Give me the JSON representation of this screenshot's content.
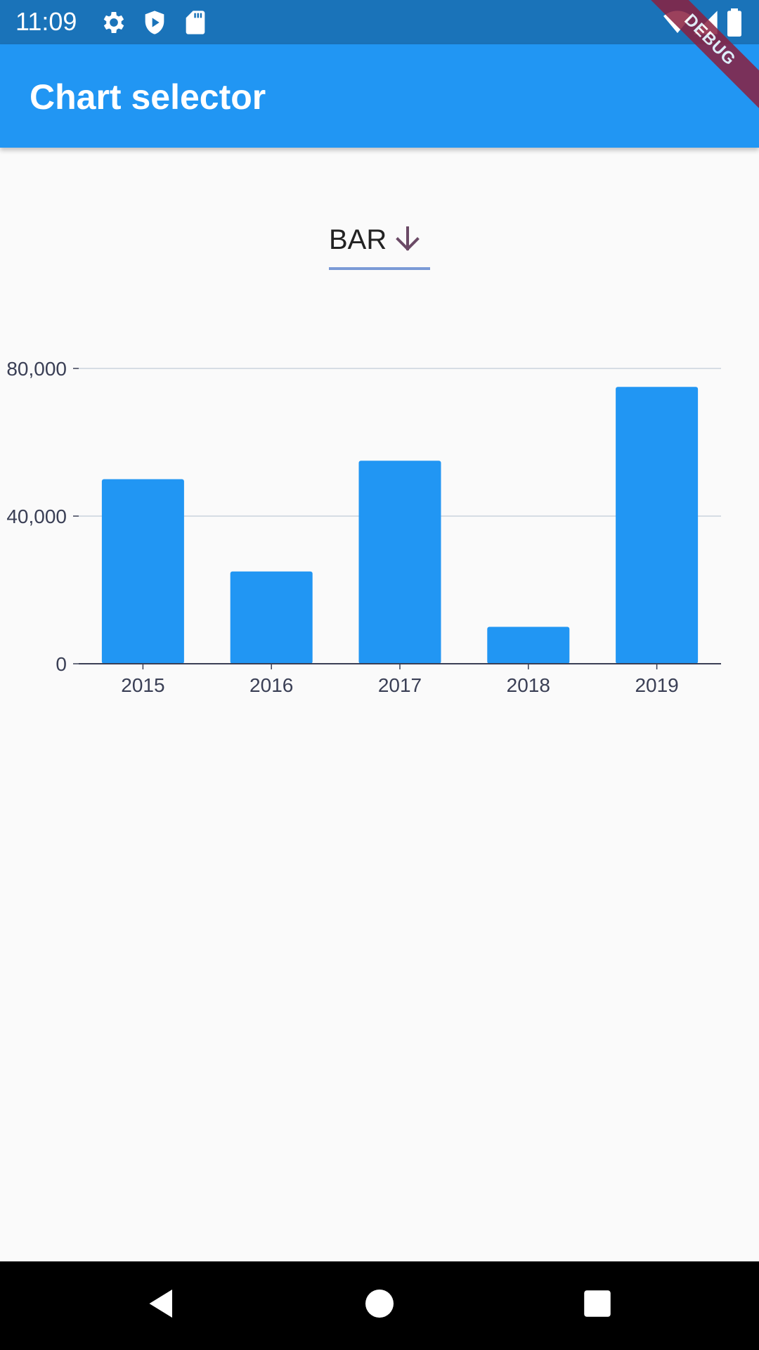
{
  "status_bar": {
    "time": "11:09",
    "left_icons": [
      "gear-icon",
      "shield-play-icon",
      "sd-card-icon"
    ],
    "right_icons": [
      "wifi-icon",
      "signal-icon",
      "battery-icon"
    ]
  },
  "app_bar": {
    "title": "Chart selector"
  },
  "debug_banner": "DEBUG",
  "selector": {
    "value": "BAR",
    "icon": "arrow-down-icon"
  },
  "chart_data": {
    "type": "bar",
    "categories": [
      "2015",
      "2016",
      "2017",
      "2018",
      "2019"
    ],
    "values": [
      50000,
      25000,
      55000,
      10000,
      75000
    ],
    "yticks": [
      0,
      40000,
      80000
    ],
    "ytick_labels": [
      "0",
      "40,000",
      "80,000"
    ],
    "ylim": [
      0,
      80000
    ],
    "grid": true,
    "colors": {
      "bar": "#2196f3",
      "grid": "#c9d3dc",
      "axis": "#3a3f55",
      "label": "#3a3f55"
    }
  },
  "nav_bar": {
    "buttons": [
      "back-icon",
      "home-icon",
      "recents-icon"
    ]
  }
}
